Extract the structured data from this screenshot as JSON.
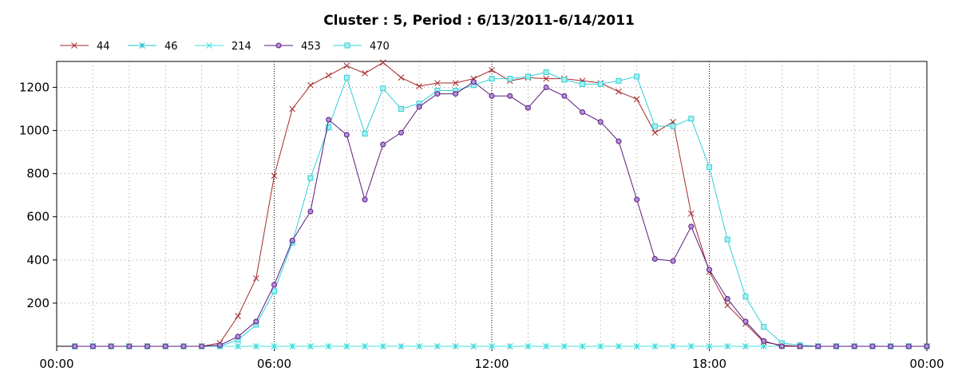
{
  "chart_data": {
    "type": "line",
    "title": "Cluster : 5, Period : 6/13/2011-6/14/2011",
    "xlabel": "",
    "ylabel": "",
    "x_unit": "hours",
    "xlim": [
      0,
      24
    ],
    "ylim": [
      0,
      1320
    ],
    "x_ticks": [
      0,
      6,
      12,
      18,
      24
    ],
    "x_tick_labels": [
      "00:00",
      "06:00",
      "12:00",
      "18:00",
      "00:00"
    ],
    "y_ticks": [
      200,
      400,
      600,
      800,
      1000,
      1200
    ],
    "grid": true,
    "legend_position": "top-left",
    "x": [
      0.5,
      1.0,
      1.5,
      2.0,
      2.5,
      3.0,
      3.5,
      4.0,
      4.5,
      5.0,
      5.5,
      6.0,
      6.5,
      7.0,
      7.5,
      8.0,
      8.5,
      9.0,
      9.5,
      10.0,
      10.5,
      11.0,
      11.5,
      12.0,
      12.5,
      13.0,
      13.5,
      14.0,
      14.5,
      15.0,
      15.5,
      16.0,
      16.5,
      17.0,
      17.5,
      18.0,
      18.5,
      19.0,
      19.5,
      20.0,
      20.5,
      21.0,
      21.5,
      22.0,
      22.5,
      23.0,
      23.5,
      24.0
    ],
    "series": [
      {
        "name": "44",
        "color": "#a52a2a",
        "marker": "x",
        "values": [
          0,
          0,
          0,
          0,
          0,
          0,
          0,
          0,
          15,
          140,
          315,
          790,
          1100,
          1210,
          1255,
          1300,
          1265,
          1315,
          1245,
          1205,
          1220,
          1220,
          1240,
          1280,
          1230,
          1245,
          1240,
          1240,
          1230,
          1220,
          1180,
          1145,
          990,
          1040,
          615,
          345,
          190,
          105,
          20,
          5,
          0,
          0,
          0,
          0,
          0,
          0,
          0,
          0
        ]
      },
      {
        "name": "46",
        "color": "#20c0c8",
        "marker": "asterisk",
        "values": [
          0,
          0,
          0,
          0,
          0,
          0,
          0,
          0,
          0,
          0,
          0,
          0,
          0,
          0,
          0,
          0,
          0,
          0,
          0,
          0,
          0,
          0,
          0,
          0,
          0,
          0,
          0,
          0,
          0,
          0,
          0,
          0,
          0,
          0,
          0,
          0,
          0,
          0,
          0,
          0,
          0,
          0,
          0,
          0,
          0,
          0,
          0,
          0
        ]
      },
      {
        "name": "214",
        "color": "#40e0e0",
        "marker": "x",
        "values": [
          0,
          0,
          0,
          0,
          0,
          0,
          0,
          0,
          0,
          0,
          0,
          0,
          0,
          0,
          0,
          0,
          0,
          0,
          0,
          0,
          0,
          0,
          0,
          0,
          0,
          0,
          0,
          0,
          0,
          0,
          0,
          0,
          0,
          0,
          0,
          0,
          0,
          0,
          0,
          0,
          0,
          0,
          0,
          0,
          0,
          0,
          0,
          0
        ]
      },
      {
        "name": "453",
        "color": "#5a1a80",
        "marker": "circle",
        "values": [
          0,
          0,
          0,
          0,
          0,
          0,
          0,
          0,
          5,
          45,
          115,
          285,
          490,
          625,
          1050,
          980,
          680,
          935,
          990,
          1110,
          1170,
          1170,
          1225,
          1160,
          1160,
          1105,
          1200,
          1160,
          1085,
          1040,
          950,
          680,
          405,
          395,
          555,
          355,
          220,
          115,
          25,
          0,
          0,
          0,
          0,
          0,
          0,
          0,
          0,
          0
        ]
      },
      {
        "name": "470",
        "color": "#30d0d8",
        "marker": "square",
        "values": [
          0,
          0,
          0,
          0,
          0,
          0,
          0,
          0,
          0,
          30,
          100,
          255,
          480,
          780,
          1015,
          1245,
          985,
          1195,
          1100,
          1125,
          1185,
          1185,
          1210,
          1240,
          1240,
          1250,
          1270,
          1235,
          1215,
          1215,
          1230,
          1250,
          1020,
          1020,
          1055,
          830,
          495,
          230,
          90,
          15,
          5,
          0,
          0,
          0,
          0,
          0,
          0,
          0
        ]
      }
    ]
  }
}
